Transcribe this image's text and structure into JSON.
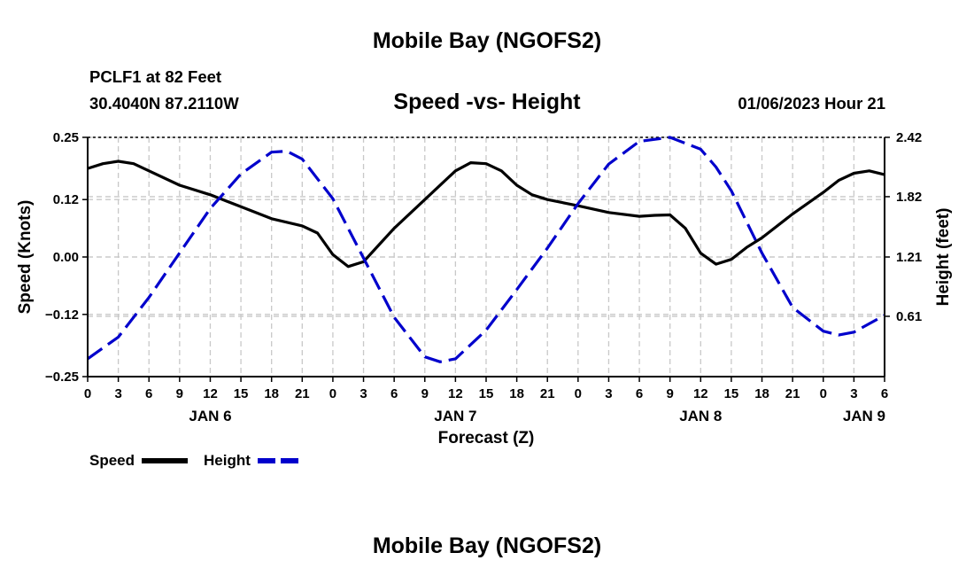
{
  "header": {
    "title": "Mobile Bay (NGOFS2)",
    "station": "PCLF1 at 82 Feet",
    "coords": "30.4040N  87.2110W",
    "timestamp": "01/06/2023 Hour 21",
    "footer_title": "Mobile Bay (NGOFS2)"
  },
  "legend": {
    "speed_label": "Speed",
    "height_label": "Height",
    "speed_color": "#000000",
    "height_color": "#0000cc"
  },
  "chart_data": {
    "type": "line",
    "title": "Speed -vs- Height",
    "xlabel": "Forecast (Z)",
    "ylabel": "Speed (Knots)",
    "y2label": "Height (feet)",
    "x_unit": "hours from 00Z Jan 6",
    "xlim": [
      0,
      78
    ],
    "ylim": [
      -0.25,
      0.25
    ],
    "y2lim": [
      0.0,
      2.42
    ],
    "x_ticks": [
      0,
      3,
      6,
      9,
      12,
      15,
      18,
      21,
      24,
      27,
      30,
      33,
      36,
      39,
      42,
      45,
      48,
      51,
      54,
      57,
      60,
      63,
      66,
      69,
      72,
      75,
      78
    ],
    "x_tick_labels": [
      "0",
      "3",
      "6",
      "9",
      "12",
      "15",
      "18",
      "21",
      "0",
      "3",
      "6",
      "9",
      "12",
      "15",
      "18",
      "21",
      "0",
      "3",
      "6",
      "9",
      "12",
      "15",
      "18",
      "21",
      "0",
      "3",
      "6"
    ],
    "date_labels": [
      {
        "x": 12,
        "label": "JAN 6"
      },
      {
        "x": 36,
        "label": "JAN 7"
      },
      {
        "x": 60,
        "label": "JAN 8"
      },
      {
        "x": 76,
        "label": "JAN 9"
      }
    ],
    "y_ticks": [
      0.25,
      0.12,
      0.0,
      -0.12,
      -0.25
    ],
    "y_tick_labels": [
      "0.25",
      "0.12",
      "0.00",
      "−0.12",
      "−0.25"
    ],
    "y2_ticks": [
      2.42,
      1.82,
      1.21,
      0.61
    ],
    "y2_tick_labels": [
      "2.42",
      "1.82",
      "1.21",
      "0.61"
    ],
    "grid": true,
    "legend_position": "bottom-left",
    "series": [
      {
        "name": "Speed",
        "axis": "left",
        "style": "solid",
        "color": "#000000",
        "x": [
          0,
          1.5,
          3,
          4.5,
          6,
          9,
          12,
          15,
          18,
          21,
          22.5,
          24,
          25.5,
          27,
          28.5,
          30,
          33,
          36,
          37.5,
          39,
          40.5,
          42,
          43.5,
          45,
          48,
          51,
          54,
          55.5,
          57,
          58.5,
          60,
          61.5,
          63,
          64.5,
          66,
          69,
          72,
          73.5,
          75,
          76.5,
          78
        ],
        "y": [
          0.185,
          0.195,
          0.2,
          0.195,
          0.18,
          0.15,
          0.13,
          0.105,
          0.08,
          0.065,
          0.05,
          0.005,
          -0.02,
          -0.01,
          0.025,
          0.06,
          0.12,
          0.18,
          0.197,
          0.195,
          0.18,
          0.15,
          0.13,
          0.12,
          0.107,
          0.093,
          0.085,
          0.087,
          0.088,
          0.06,
          0.008,
          -0.015,
          -0.005,
          0.02,
          0.04,
          0.09,
          0.135,
          0.16,
          0.175,
          0.18,
          0.172
        ]
      },
      {
        "name": "Height",
        "axis": "right",
        "style": "dashed",
        "color": "#0000cc",
        "x": [
          0,
          3,
          6,
          9,
          12,
          15,
          18,
          19.5,
          21,
          24,
          27,
          30,
          33,
          34.5,
          36,
          39,
          42,
          45,
          48,
          51,
          54,
          57,
          60,
          61.5,
          63,
          66,
          69,
          72,
          73.5,
          75,
          78
        ],
        "y": [
          0.18,
          0.4,
          0.8,
          1.25,
          1.7,
          2.05,
          2.27,
          2.28,
          2.2,
          1.8,
          1.2,
          0.6,
          0.2,
          0.15,
          0.18,
          0.47,
          0.88,
          1.3,
          1.75,
          2.15,
          2.38,
          2.42,
          2.3,
          2.12,
          1.88,
          1.25,
          0.7,
          0.46,
          0.42,
          0.45,
          0.62
        ]
      }
    ]
  }
}
